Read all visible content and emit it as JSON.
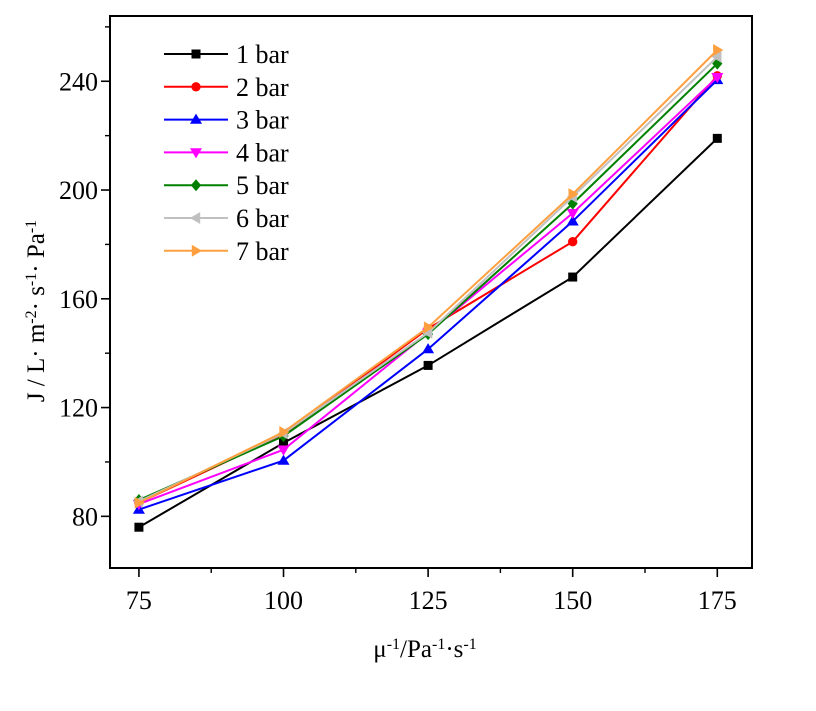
{
  "chart_data": {
    "type": "line",
    "title": "",
    "xlabel": "μ",
    "xlabel_sup1": "-1",
    "xlabel_mid": "/Pa",
    "xlabel_sup2": "-1",
    "xlabel_tail": "·s",
    "xlabel_sup3": "-1",
    "ylabel": "J / L· m",
    "ylabel_sup1": "-2",
    "ylabel_mid": "· s",
    "ylabel_sup2": "-1",
    "ylabel_tail": "· Pa",
    "ylabel_sup3": "-1",
    "xlim": [
      70,
      181
    ],
    "ylim": [
      61,
      264
    ],
    "x": [
      75,
      100,
      125,
      150,
      175
    ],
    "xticks": [
      75,
      100,
      125,
      150,
      175
    ],
    "yticks": [
      80,
      120,
      160,
      200,
      240
    ],
    "legend_position": "top-left",
    "series": [
      {
        "name": "1 bar",
        "color": "#000000",
        "marker": "square",
        "values": [
          76,
          107,
          135.5,
          168,
          219
        ]
      },
      {
        "name": "2 bar",
        "color": "#ff0000",
        "marker": "circle",
        "values": [
          85,
          110,
          149,
          181,
          242
        ]
      },
      {
        "name": "3 bar",
        "color": "#0000ff",
        "marker": "triangle-up",
        "values": [
          82.5,
          100.5,
          141.5,
          188.5,
          240.5
        ]
      },
      {
        "name": "4 bar",
        "color": "#ff00ff",
        "marker": "triangle-down",
        "values": [
          84.5,
          104.5,
          147.5,
          191.5,
          241.5
        ]
      },
      {
        "name": "5 bar",
        "color": "#008000",
        "marker": "diamond",
        "values": [
          86,
          109.5,
          147,
          195,
          246.5
        ]
      },
      {
        "name": "6 bar",
        "color": "#c0c0c0",
        "marker": "triangle-left",
        "values": [
          85.5,
          110.5,
          147.5,
          197.5,
          249
        ]
      },
      {
        "name": "7 bar",
        "color": "#ffa040",
        "marker": "triangle-right",
        "values": [
          85,
          111,
          149.5,
          198.5,
          251.5
        ]
      }
    ]
  }
}
